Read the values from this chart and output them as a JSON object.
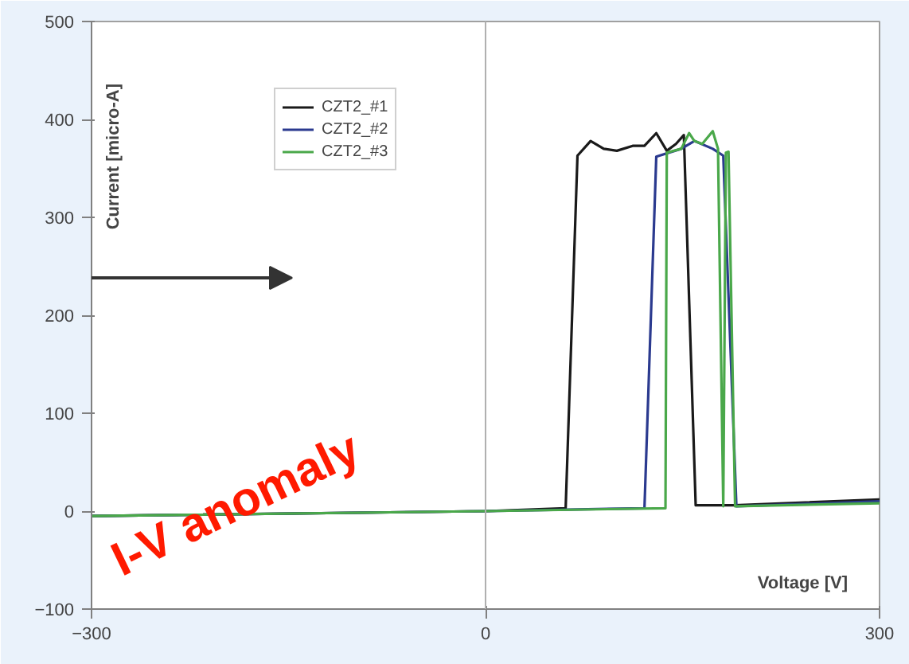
{
  "chart_data": {
    "type": "line",
    "xlabel": "Voltage [V]",
    "ylabel": "Current [micro-A]",
    "xlim": [
      -300,
      300
    ],
    "xticks": [
      -300,
      0,
      300
    ],
    "ylim": [
      -100,
      500
    ],
    "yticks": [
      -100,
      0,
      100,
      200,
      300,
      400,
      500
    ],
    "grid": false,
    "legend": "top left",
    "line_style": "solid",
    "marker": "none",
    "ref_lines": [
      {
        "axis": "x",
        "value": 0,
        "color": "#b0b0b0"
      }
    ],
    "annotations": [
      "I-V anomaly"
    ],
    "series": [
      {
        "name": "CZT2_#1",
        "color": "#1a1a1a",
        "x": [
          -300,
          0,
          61,
          70,
          80,
          90,
          100,
          112,
          121,
          130,
          138,
          145,
          151,
          160,
          190,
          300
        ],
        "values": [
          -5,
          0,
          3,
          363,
          378,
          370,
          368,
          373,
          373,
          386,
          368,
          375,
          384,
          6,
          6,
          12
        ]
      },
      {
        "name": "CZT2_#2",
        "color": "#2b3a8f",
        "x": [
          -300,
          0,
          121,
          130,
          149,
          159,
          173,
          181,
          191,
          300
        ],
        "values": [
          -5,
          0,
          3,
          362,
          370,
          378,
          370,
          363,
          5,
          10
        ]
      },
      {
        "name": "CZT2_#3",
        "color": "#4aa84a",
        "x": [
          -300,
          0,
          137,
          138,
          149,
          155,
          159,
          165,
          173,
          177,
          181,
          183,
          185,
          190,
          300
        ],
        "values": [
          -5,
          0,
          3,
          366,
          370,
          386,
          378,
          375,
          388,
          370,
          5,
          366,
          367,
          5,
          8
        ]
      }
    ]
  }
}
